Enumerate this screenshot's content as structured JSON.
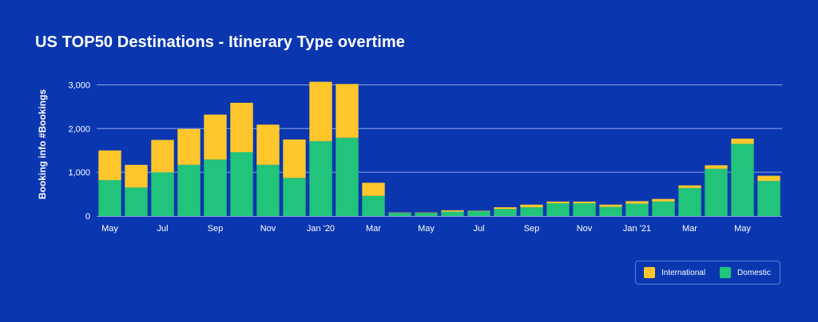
{
  "title": "US TOP50 Destinations - Itinerary Type overtime",
  "colors": {
    "background": "#0a37b0",
    "international": "#ffc72c",
    "domestic": "#21c47a",
    "grid": "#8ea5e8"
  },
  "legend": {
    "international_label": "International",
    "domestic_label": "Domestic"
  },
  "chart_data": {
    "type": "bar",
    "stacked": true,
    "ylabel": "Booking info #Bookings",
    "xlabel": "",
    "ylim": [
      0,
      3300
    ],
    "yticks": [
      0,
      1000,
      2000,
      3000
    ],
    "ytick_labels": [
      "0",
      "1,000",
      "2,000",
      "3,000"
    ],
    "grid": true,
    "legend_position": "bottom-right",
    "categories": [
      "May 2019",
      "Jun 2019",
      "Jul 2019",
      "Aug 2019",
      "Sep 2019",
      "Oct 2019",
      "Nov 2019",
      "Dec 2019",
      "Jan 2020",
      "Feb 2020",
      "Mar 2020",
      "Apr 2020",
      "May 2020",
      "Jun 2020",
      "Jul 2020",
      "Aug 2020",
      "Sep 2020",
      "Oct 2020",
      "Nov 2020",
      "Dec 2020",
      "Jan 2021",
      "Feb 2021",
      "Mar 2021",
      "Apr 2021",
      "May 2021",
      "Jun 2021"
    ],
    "xtick_labels": [
      "May",
      "",
      "Jul",
      "",
      "Sep",
      "",
      "Nov",
      "",
      "Jan '20",
      "",
      "Mar",
      "",
      "May",
      "",
      "Jul",
      "",
      "Sep",
      "",
      "Nov",
      "",
      "Jan '21",
      "",
      "Mar",
      "",
      "May",
      ""
    ],
    "series": [
      {
        "name": "Domestic",
        "values": [
          820,
          650,
          1000,
          1170,
          1290,
          1460,
          1170,
          870,
          1710,
          1790,
          460,
          70,
          70,
          100,
          110,
          160,
          200,
          290,
          290,
          210,
          280,
          330,
          640,
          1080,
          1650,
          800
        ]
      },
      {
        "name": "International",
        "values": [
          680,
          520,
          740,
          820,
          1030,
          1130,
          920,
          880,
          1360,
          1230,
          300,
          10,
          10,
          30,
          10,
          40,
          60,
          40,
          40,
          50,
          60,
          60,
          60,
          80,
          120,
          120
        ]
      }
    ]
  }
}
